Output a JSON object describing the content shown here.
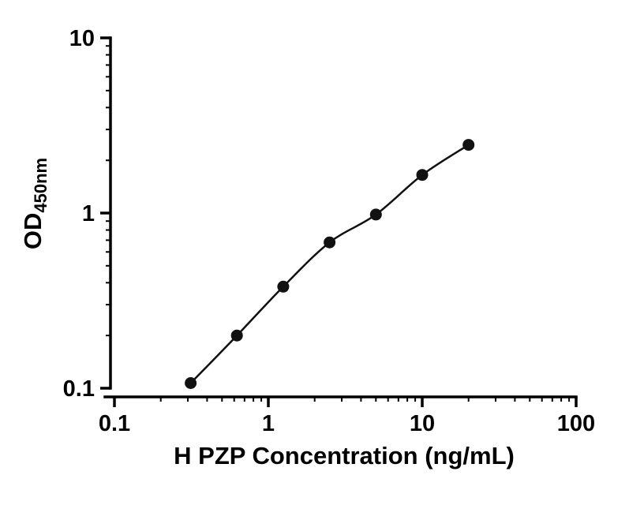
{
  "chart_data": {
    "type": "scatter",
    "title": "",
    "xlabel": "H PZP Concentration (ng/mL)",
    "ylabel_main": "OD",
    "ylabel_sub": "450nm",
    "xscale": "log",
    "yscale": "log",
    "xlim": [
      0.1,
      100
    ],
    "ylim": [
      0.1,
      10
    ],
    "x": [
      0.313,
      0.625,
      1.25,
      2.5,
      5,
      10,
      20
    ],
    "y": [
      0.107,
      0.2,
      0.38,
      0.68,
      0.98,
      1.65,
      2.45
    ],
    "curve": "fitted smooth curve through points",
    "x_major_ticks": [
      0.1,
      1,
      10,
      100
    ],
    "x_tick_labels": [
      "0.1",
      "1",
      "10",
      "100"
    ],
    "y_major_ticks": [
      0.1,
      1,
      10
    ],
    "y_tick_labels": [
      "0.1",
      "1",
      "10"
    ],
    "minor_ticks": "log decades 2-9",
    "grid": false,
    "legend": "none",
    "axis_color": "#000000",
    "marker_color": "#111111",
    "line_color": "#111111",
    "background_color": "#ffffff"
  }
}
